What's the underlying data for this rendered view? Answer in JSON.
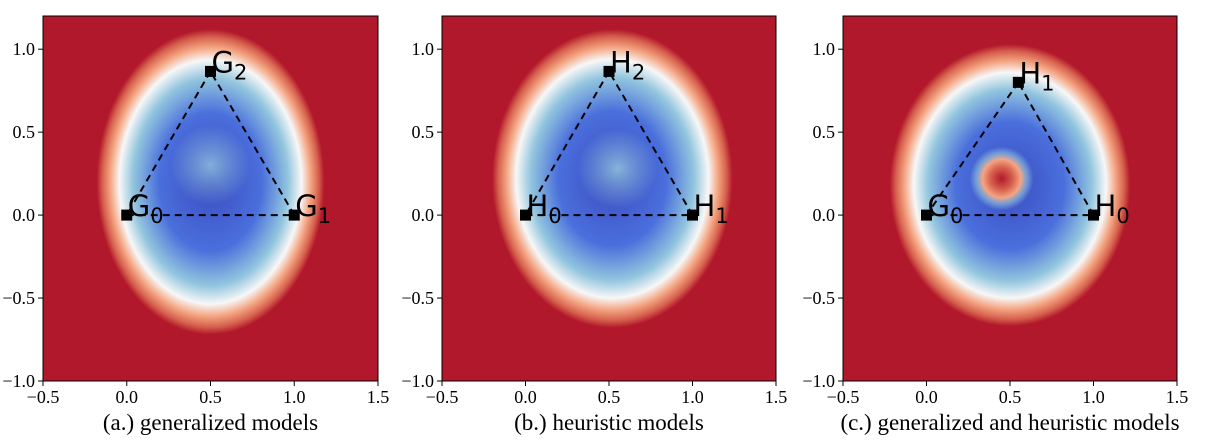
{
  "colors": {
    "background_high": "#b2182b",
    "ramp_hot": "#d6604d",
    "ramp_warm": "#f4a582",
    "ramp_mid": "#f7f7f7",
    "ramp_cool": "#92c5de",
    "ramp_cold": "#4a6fdc",
    "ramp_deep": "#3b4cc0",
    "triangle_edge": "#000000"
  },
  "chart_data": [
    {
      "type": "heatmap",
      "caption": "(a.) generalized models",
      "xlim": [
        -0.5,
        1.5
      ],
      "ylim": [
        -1.0,
        1.2
      ],
      "xticks": [
        -0.5,
        0.0,
        0.5,
        1.0,
        1.5
      ],
      "xtick_labels": [
        "−0.5",
        "0.0",
        "0.5",
        "1.0",
        "1.5"
      ],
      "yticks": [
        -1.0,
        -0.5,
        0.0,
        0.5,
        1.0
      ],
      "ytick_labels": [
        "−1.0",
        "−0.5",
        "0.0",
        "0.5",
        "1.0"
      ],
      "points": [
        {
          "label": "G",
          "sub": "0",
          "x": 0.0,
          "y": 0.0
        },
        {
          "label": "G",
          "sub": "1",
          "x": 1.0,
          "y": 0.0
        },
        {
          "label": "G",
          "sub": "2",
          "x": 0.5,
          "y": 0.866
        }
      ],
      "basin": {
        "center": [
          0.5,
          0.2
        ],
        "rx": 0.68,
        "ry": 0.92,
        "inner_spot": [
          0.5,
          0.3
        ],
        "spot_level": 0.5
      }
    },
    {
      "type": "heatmap",
      "caption": "(b.) heuristic models",
      "xlim": [
        -0.5,
        1.5
      ],
      "ylim": [
        -1.0,
        1.2
      ],
      "xticks": [
        -0.5,
        0.0,
        0.5,
        1.0,
        1.5
      ],
      "xtick_labels": [
        "−0.5",
        "0.0",
        "0.5",
        "1.0",
        "1.5"
      ],
      "yticks": [
        -1.0,
        -0.5,
        0.0,
        0.5,
        1.0
      ],
      "ytick_labels": [
        "−1.0",
        "−0.5",
        "0.0",
        "0.5",
        "1.0"
      ],
      "points": [
        {
          "label": "H",
          "sub": "0",
          "x": 0.0,
          "y": 0.0
        },
        {
          "label": "H",
          "sub": "1",
          "x": 1.0,
          "y": 0.0
        },
        {
          "label": "H",
          "sub": "2",
          "x": 0.5,
          "y": 0.866
        }
      ],
      "basin": {
        "center": [
          0.52,
          0.22
        ],
        "rx": 0.72,
        "ry": 0.9,
        "inner_spot": [
          0.55,
          0.28
        ],
        "spot_level": 0.55
      }
    },
    {
      "type": "heatmap",
      "caption": "(c.) generalized and heuristic models",
      "xlim": [
        -0.5,
        1.5
      ],
      "ylim": [
        -1.0,
        1.2
      ],
      "xticks": [
        -0.5,
        0.0,
        0.5,
        1.0,
        1.5
      ],
      "xtick_labels": [
        "−0.5",
        "0.0",
        "0.5",
        "1.0",
        "1.5"
      ],
      "yticks": [
        -1.0,
        -0.5,
        0.0,
        0.5,
        1.0
      ],
      "ytick_labels": [
        "−1.0",
        "−0.5",
        "0.0",
        "0.5",
        "1.0"
      ],
      "points": [
        {
          "label": "G",
          "sub": "0",
          "x": 0.0,
          "y": 0.0
        },
        {
          "label": "H",
          "sub": "0",
          "x": 1.0,
          "y": 0.0
        },
        {
          "label": "H",
          "sub": "1",
          "x": 0.55,
          "y": 0.8
        }
      ],
      "basin": {
        "center": [
          0.5,
          0.18
        ],
        "rx": 0.72,
        "ry": 0.85,
        "inner_spot": [
          0.45,
          0.22
        ],
        "spot_level": 1.0
      }
    }
  ]
}
